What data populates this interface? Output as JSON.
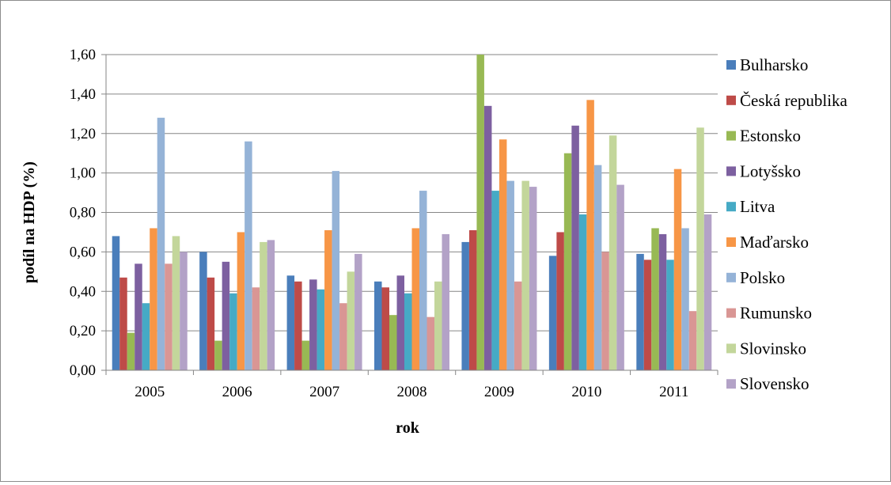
{
  "chart_data": {
    "type": "bar",
    "title": "",
    "xlabel": "rok",
    "ylabel": "podíl na HDP (%)",
    "ylim": [
      0,
      1.6
    ],
    "ytick_step": 0.2,
    "ytick_labels": [
      "0,00",
      "0,20",
      "0,40",
      "0,60",
      "0,80",
      "1,00",
      "1,20",
      "1,40",
      "1,60"
    ],
    "grid": "horizontal major gridlines",
    "legend_position": "right",
    "categories": [
      "2005",
      "2006",
      "2007",
      "2008",
      "2009",
      "2010",
      "2011"
    ],
    "series": [
      {
        "name": "Bulharsko",
        "color": "#4A7EBB",
        "values": [
          0.68,
          0.6,
          0.48,
          0.45,
          0.65,
          0.58,
          0.59
        ]
      },
      {
        "name": "Česká republika",
        "color": "#BE4B48",
        "values": [
          0.47,
          0.47,
          0.45,
          0.42,
          0.71,
          0.7,
          0.56
        ]
      },
      {
        "name": "Estonsko",
        "color": "#98B954",
        "values": [
          0.19,
          0.15,
          0.15,
          0.28,
          1.6,
          1.1,
          0.72
        ]
      },
      {
        "name": "Lotyšsko",
        "color": "#7D60A0",
        "values": [
          0.54,
          0.55,
          0.46,
          0.48,
          1.34,
          1.24,
          0.69
        ]
      },
      {
        "name": "Litva",
        "color": "#46AAC5",
        "values": [
          0.34,
          0.39,
          0.41,
          0.39,
          0.91,
          0.79,
          0.56
        ]
      },
      {
        "name": "Maďarsko",
        "color": "#F79646",
        "values": [
          0.72,
          0.7,
          0.71,
          0.72,
          1.17,
          1.37,
          1.02
        ]
      },
      {
        "name": "Polsko",
        "color": "#95B3D7",
        "values": [
          1.28,
          1.16,
          1.01,
          0.91,
          0.96,
          1.04,
          0.72
        ]
      },
      {
        "name": "Rumunsko",
        "color": "#D99694",
        "values": [
          0.54,
          0.42,
          0.34,
          0.27,
          0.45,
          0.6,
          0.3
        ]
      },
      {
        "name": "Slovinsko",
        "color": "#C3D69B",
        "values": [
          0.68,
          0.65,
          0.5,
          0.45,
          0.96,
          1.19,
          1.23
        ]
      },
      {
        "name": "Slovensko",
        "color": "#B3A2C7",
        "values": [
          0.6,
          0.66,
          0.59,
          0.69,
          0.93,
          0.94,
          0.79
        ]
      }
    ]
  }
}
